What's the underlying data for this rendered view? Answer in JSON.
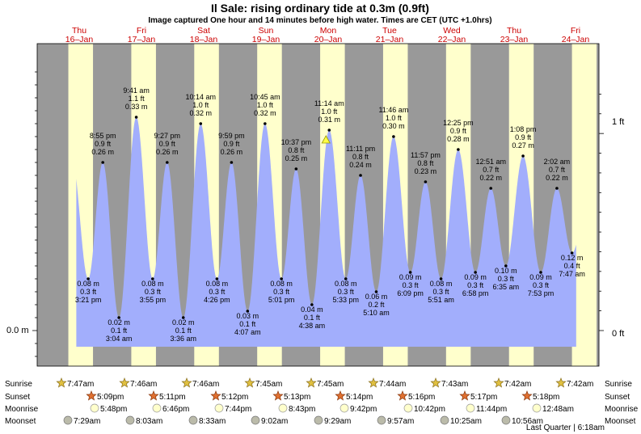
{
  "title": "Il Sale: rising  ordinary tide at 0.3m (0.9ft)",
  "subtitle": "Image captured One hour and 14 minutes before high water. Times are CET (UTC +1.0hrs)",
  "colors": {
    "water": "#a2aefc",
    "night": "#999999",
    "day": "#ffffcc",
    "daylabel": "#cc0000"
  },
  "chart_data": {
    "type": "area",
    "title": "Il Sale: rising  ordinary tide at 0.3m (0.9ft)",
    "ylabel_left": "0.0 m",
    "ylabel_right_ticks": [
      "0 ft",
      "1 ft"
    ],
    "ylim_m": [
      -0.05,
      0.42
    ],
    "days": [
      {
        "dow": "Thu",
        "date": "16–Jan"
      },
      {
        "dow": "Fri",
        "date": "17–Jan"
      },
      {
        "dow": "Sat",
        "date": "18–Jan"
      },
      {
        "dow": "Sun",
        "date": "19–Jan"
      },
      {
        "dow": "Mon",
        "date": "20–Jan"
      },
      {
        "dow": "Tue",
        "date": "21–Jan"
      },
      {
        "dow": "Wed",
        "date": "22–Jan"
      },
      {
        "dow": "Thu",
        "date": "23–Jan"
      },
      {
        "dow": "Fri",
        "date": "24–Jan"
      }
    ],
    "extremes": [
      {
        "type": "low",
        "m": "0.08 m",
        "ft": "0.3 ft",
        "time": "3:21 pm",
        "t": 15.35,
        "v": 0.08
      },
      {
        "type": "high",
        "m": "0.26 m",
        "ft": "0.9 ft",
        "time": "8:55 pm",
        "t": 20.92,
        "v": 0.26
      },
      {
        "type": "low",
        "m": "0.02 m",
        "ft": "0.1 ft",
        "time": "3:04 am",
        "t": 27.07,
        "v": 0.02
      },
      {
        "type": "high",
        "m": "0.33 m",
        "ft": "1.1 ft",
        "time": "9:41 am",
        "t": 33.68,
        "v": 0.33
      },
      {
        "type": "low",
        "m": "0.08 m",
        "ft": "0.3 ft",
        "time": "3:55 pm",
        "t": 39.92,
        "v": 0.08
      },
      {
        "type": "high",
        "m": "0.26 m",
        "ft": "0.9 ft",
        "time": "9:27 pm",
        "t": 45.45,
        "v": 0.26
      },
      {
        "type": "low",
        "m": "0.02 m",
        "ft": "0.1 ft",
        "time": "3:36 am",
        "t": 51.6,
        "v": 0.02
      },
      {
        "type": "high",
        "m": "0.32 m",
        "ft": "1.0 ft",
        "time": "10:14 am",
        "t": 58.23,
        "v": 0.32
      },
      {
        "type": "low",
        "m": "0.08 m",
        "ft": "0.3 ft",
        "time": "4:26 pm",
        "t": 64.43,
        "v": 0.08
      },
      {
        "type": "high",
        "m": "0.26 m",
        "ft": "0.9 ft",
        "time": "9:59 pm",
        "t": 69.98,
        "v": 0.26
      },
      {
        "type": "low",
        "m": "0.03 m",
        "ft": "0.1 ft",
        "time": "4:07 am",
        "t": 76.12,
        "v": 0.03
      },
      {
        "type": "high",
        "m": "0.32 m",
        "ft": "1.0 ft",
        "time": "10:45 am",
        "t": 82.75,
        "v": 0.32
      },
      {
        "type": "low",
        "m": "0.08 m",
        "ft": "0.3 ft",
        "time": "5:01 pm",
        "t": 89.02,
        "v": 0.08
      },
      {
        "type": "high",
        "m": "0.25 m",
        "ft": "0.8 ft",
        "time": "10:37 pm",
        "t": 94.62,
        "v": 0.25
      },
      {
        "type": "low",
        "m": "0.04 m",
        "ft": "0.1 ft",
        "time": "4:38 am",
        "t": 100.63,
        "v": 0.04
      },
      {
        "type": "high",
        "m": "0.31 m",
        "ft": "1.0 ft",
        "time": "11:14 am",
        "t": 107.23,
        "v": 0.31
      },
      {
        "type": "low",
        "m": "0.08 m",
        "ft": "0.3 ft",
        "time": "5:33 pm",
        "t": 113.55,
        "v": 0.08
      },
      {
        "type": "high",
        "m": "0.24 m",
        "ft": "0.8 ft",
        "time": "11:11 pm",
        "t": 119.18,
        "v": 0.24
      },
      {
        "type": "low",
        "m": "0.06 m",
        "ft": "0.2 ft",
        "time": "5:10 am",
        "t": 125.17,
        "v": 0.06
      },
      {
        "type": "high",
        "m": "0.30 m",
        "ft": "1.0 ft",
        "time": "11:46 am",
        "t": 131.77,
        "v": 0.3
      },
      {
        "type": "low",
        "m": "0.09 m",
        "ft": "0.3 ft",
        "time": "6:09 pm",
        "t": 138.15,
        "v": 0.09
      },
      {
        "type": "high",
        "m": "0.23 m",
        "ft": "0.8 ft",
        "time": "11:57 pm",
        "t": 143.95,
        "v": 0.23
      },
      {
        "type": "low",
        "m": "0.08 m",
        "ft": "0.3 ft",
        "time": "5:51 am",
        "t": 149.85,
        "v": 0.08
      },
      {
        "type": "high",
        "m": "0.28 m",
        "ft": "0.9 ft",
        "time": "12:25 pm",
        "t": 156.42,
        "v": 0.28
      },
      {
        "type": "low",
        "m": "0.09 m",
        "ft": "0.3 ft",
        "time": "6:58 pm",
        "t": 162.97,
        "v": 0.09
      },
      {
        "type": "high",
        "m": "0.22 m",
        "ft": "0.7 ft",
        "time": "12:51 am",
        "t": 168.85,
        "v": 0.22
      },
      {
        "type": "low",
        "m": "0.10 m",
        "ft": "0.3 ft",
        "time": "6:35 am",
        "t": 174.58,
        "v": 0.1
      },
      {
        "type": "high",
        "m": "0.27 m",
        "ft": "0.9 ft",
        "time": "1:08 pm",
        "t": 181.13,
        "v": 0.27
      },
      {
        "type": "low",
        "m": "0.09 m",
        "ft": "0.3 ft",
        "time": "7:53 pm",
        "t": 187.88,
        "v": 0.09
      },
      {
        "type": "high",
        "m": "0.22 m",
        "ft": "0.7 ft",
        "time": "2:02 am",
        "t": 194.03,
        "v": 0.22
      },
      {
        "type": "low",
        "m": "0.12 m",
        "ft": "0.4 ft",
        "time": "7:47 am",
        "t": 199.78,
        "v": 0.12
      }
    ],
    "now_marker": {
      "t": 106.0,
      "v": 0.3
    }
  },
  "sunrise": {
    "label": "Sunrise",
    "times": [
      "7:47am",
      "7:46am",
      "7:46am",
      "7:45am",
      "7:45am",
      "7:44am",
      "7:43am",
      "7:42am",
      "7:42am"
    ]
  },
  "sunset": {
    "label": "Sunset",
    "times": [
      "5:09pm",
      "5:11pm",
      "5:12pm",
      "5:13pm",
      "5:14pm",
      "5:16pm",
      "5:17pm",
      "5:18pm"
    ]
  },
  "moonrise": {
    "label": "Moonrise",
    "times": [
      "5:48pm",
      "6:46pm",
      "7:44pm",
      "8:43pm",
      "9:42pm",
      "10:42pm",
      "11:44pm",
      "12:48am"
    ]
  },
  "moonset": {
    "label": "Moonset",
    "times": [
      "7:29am",
      "8:03am",
      "8:33am",
      "9:02am",
      "9:29am",
      "9:57am",
      "10:25am",
      "10:56am"
    ]
  },
  "moon_phase": "Last Quarter | 6:18am"
}
